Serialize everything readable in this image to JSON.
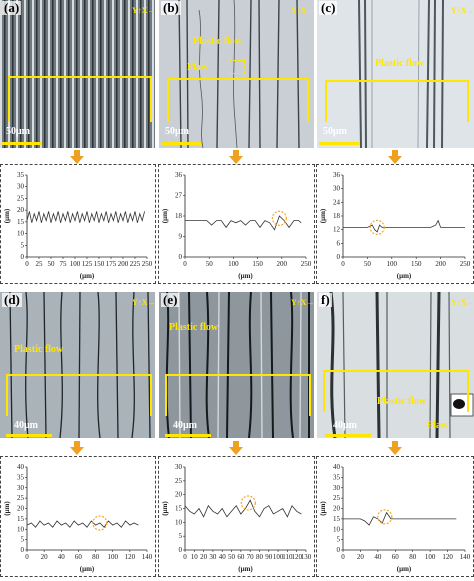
{
  "colors": {
    "annotation": "#ffe600",
    "arrow": "#f0a020",
    "profile": "#333333",
    "circle": "#f5a623"
  },
  "panels": [
    {
      "id": "a",
      "label": "(a)",
      "scale": "50μm",
      "annotations": [],
      "theme": "dark"
    },
    {
      "id": "b",
      "label": "(b)",
      "scale": "50μm",
      "annotations": [
        "Plastic flow",
        "Flaw"
      ],
      "theme": "light"
    },
    {
      "id": "c",
      "label": "(c)",
      "scale": "50μm",
      "annotations": [
        "Plastic flow"
      ],
      "theme": "bright"
    },
    {
      "id": "d",
      "label": "(d)",
      "scale": "40μm",
      "annotations": [
        "Plastic flow"
      ],
      "theme": "light"
    },
    {
      "id": "e",
      "label": "(e)",
      "scale": "40μm",
      "annotations": [
        "Plastic flow"
      ],
      "theme": "light"
    },
    {
      "id": "f",
      "label": "f)",
      "scale": "40μm",
      "annotations": [
        "Plastic flow",
        "Flaw"
      ],
      "theme": "bright"
    }
  ],
  "compass": {
    "x": "X",
    "y": "Y"
  },
  "chart_data": [
    {
      "type": "line",
      "panel": "a",
      "xlabel": "(μm)",
      "ylabel": "(μm)",
      "xlim": [
        0,
        250
      ],
      "ylim": [
        0,
        36
      ],
      "xticks": [
        "0",
        "25",
        "50",
        "75",
        "100",
        "125",
        "150",
        "175",
        "200",
        "225",
        "250"
      ],
      "yticks": [
        "0",
        "5",
        "10",
        "15",
        "20",
        "25",
        "30",
        "35"
      ],
      "series": [
        {
          "x": [
            0,
            5,
            10,
            15,
            20,
            25,
            30,
            35,
            40,
            45,
            50,
            55,
            60,
            65,
            70,
            75,
            80,
            85,
            90,
            95,
            100,
            105,
            110,
            115,
            120,
            125,
            130,
            135,
            140,
            145,
            150,
            155,
            160,
            165,
            170,
            175,
            180,
            185,
            190,
            195,
            200,
            205,
            210,
            215,
            220,
            225,
            230,
            235,
            240,
            245
          ],
          "y": [
            16,
            20,
            15,
            19,
            16,
            20,
            15,
            19,
            16,
            20,
            15,
            19,
            16,
            20,
            15,
            19,
            16,
            20,
            15,
            19,
            16,
            20,
            15,
            19,
            16,
            20,
            15,
            19,
            16,
            20,
            15,
            19,
            16,
            20,
            15,
            19,
            16,
            20,
            15,
            19,
            16,
            20,
            15,
            19,
            16,
            20,
            15,
            19,
            16,
            20
          ]
        }
      ],
      "highlight": null
    },
    {
      "type": "line",
      "panel": "b",
      "xlabel": "(μm)",
      "ylabel": "(μm)",
      "xlim": [
        0,
        250
      ],
      "ylim": [
        0,
        36
      ],
      "xticks": [
        "0",
        "50",
        "100",
        "150",
        "200",
        "250"
      ],
      "yticks": [
        "0",
        "9",
        "18",
        "27",
        "36"
      ],
      "series": [
        {
          "x": [
            0,
            15,
            30,
            45,
            55,
            65,
            75,
            85,
            95,
            105,
            115,
            125,
            135,
            145,
            155,
            165,
            175,
            185,
            195,
            205,
            215,
            225,
            235,
            240
          ],
          "y": [
            16,
            16,
            16,
            16,
            14,
            16,
            16,
            13,
            16,
            15,
            16,
            14,
            16,
            16,
            13,
            16,
            15,
            12,
            18,
            16,
            13,
            16,
            16,
            15
          ]
        }
      ],
      "highlight": {
        "x": 195,
        "y": 17
      }
    },
    {
      "type": "line",
      "panel": "c",
      "xlabel": "(μm)",
      "ylabel": "(μm)",
      "xlim": [
        0,
        250
      ],
      "ylim": [
        0,
        36
      ],
      "xticks": [
        "0",
        "50",
        "100",
        "150",
        "200",
        "250"
      ],
      "yticks": [
        "0",
        "6",
        "12",
        "18",
        "24",
        "30",
        "36"
      ],
      "series": [
        {
          "x": [
            0,
            10,
            20,
            30,
            40,
            50,
            60,
            65,
            70,
            75,
            80,
            90,
            100,
            120,
            140,
            160,
            180,
            190,
            195,
            200,
            210,
            230,
            250
          ],
          "y": [
            13,
            13,
            13,
            13,
            13,
            13,
            14,
            12,
            11,
            14,
            13,
            13,
            13,
            13,
            13,
            13,
            13,
            14,
            16,
            13,
            13,
            13,
            13
          ]
        }
      ],
      "highlight": {
        "x": 70,
        "y": 13
      }
    },
    {
      "type": "line",
      "panel": "d",
      "xlabel": "(μm)",
      "ylabel": "(μm)",
      "xlim": [
        0,
        140
      ],
      "ylim": [
        0,
        40
      ],
      "xticks": [
        "0",
        "20",
        "40",
        "60",
        "80",
        "100",
        "120",
        "140"
      ],
      "yticks": [
        "0",
        "5",
        "10",
        "15",
        "20",
        "25",
        "30",
        "35",
        "40"
      ],
      "series": [
        {
          "x": [
            0,
            5,
            10,
            15,
            20,
            25,
            30,
            35,
            40,
            45,
            50,
            55,
            60,
            65,
            70,
            75,
            80,
            85,
            90,
            95,
            100,
            105,
            110,
            115,
            120,
            125,
            130
          ],
          "y": [
            12,
            13,
            11,
            14,
            12,
            13,
            11,
            14,
            12,
            13,
            11,
            14,
            12,
            13,
            11,
            14,
            12,
            13,
            11,
            14,
            12,
            13,
            11,
            14,
            12,
            13,
            12
          ]
        }
      ],
      "highlight": {
        "x": 85,
        "y": 13
      }
    },
    {
      "type": "line",
      "panel": "e",
      "xlabel": "(μm)",
      "ylabel": "(μm)",
      "xlim": [
        0,
        130
      ],
      "ylim": [
        0,
        30
      ],
      "xticks": [
        "0",
        "10",
        "20",
        "30",
        "40",
        "50",
        "60",
        "70",
        "80",
        "90",
        "100",
        "110",
        "120",
        "130"
      ],
      "yticks": [
        "0",
        "5",
        "10",
        "15",
        "20",
        "25",
        "30"
      ],
      "series": [
        {
          "x": [
            0,
            5,
            10,
            15,
            20,
            25,
            30,
            35,
            40,
            45,
            50,
            55,
            60,
            65,
            70,
            75,
            80,
            85,
            90,
            95,
            100,
            105,
            110,
            115,
            120,
            125
          ],
          "y": [
            16,
            14,
            13,
            15,
            12,
            16,
            14,
            13,
            15,
            12,
            14,
            16,
            13,
            15,
            18,
            14,
            12,
            15,
            16,
            13,
            14,
            15,
            12,
            16,
            14,
            13
          ]
        }
      ],
      "highlight": {
        "x": 68,
        "y": 17
      }
    },
    {
      "type": "line",
      "panel": "f",
      "xlabel": "(μm)",
      "ylabel": "(μm)",
      "xlim": [
        0,
        140
      ],
      "ylim": [
        0,
        40
      ],
      "xticks": [
        "0",
        "20",
        "40",
        "60",
        "80",
        "100",
        "120",
        "140"
      ],
      "yticks": [
        "0",
        "5",
        "10",
        "15",
        "20",
        "25",
        "30",
        "35",
        "40"
      ],
      "series": [
        {
          "x": [
            0,
            10,
            20,
            25,
            30,
            35,
            40,
            45,
            50,
            55,
            60,
            70,
            80,
            90,
            100,
            110,
            120,
            125,
            130
          ],
          "y": [
            15,
            15,
            15,
            14,
            12,
            16,
            15,
            13,
            18,
            15,
            15,
            15,
            15,
            15,
            15,
            15,
            15,
            15,
            15
          ]
        }
      ],
      "highlight": {
        "x": 48,
        "y": 16
      }
    }
  ]
}
